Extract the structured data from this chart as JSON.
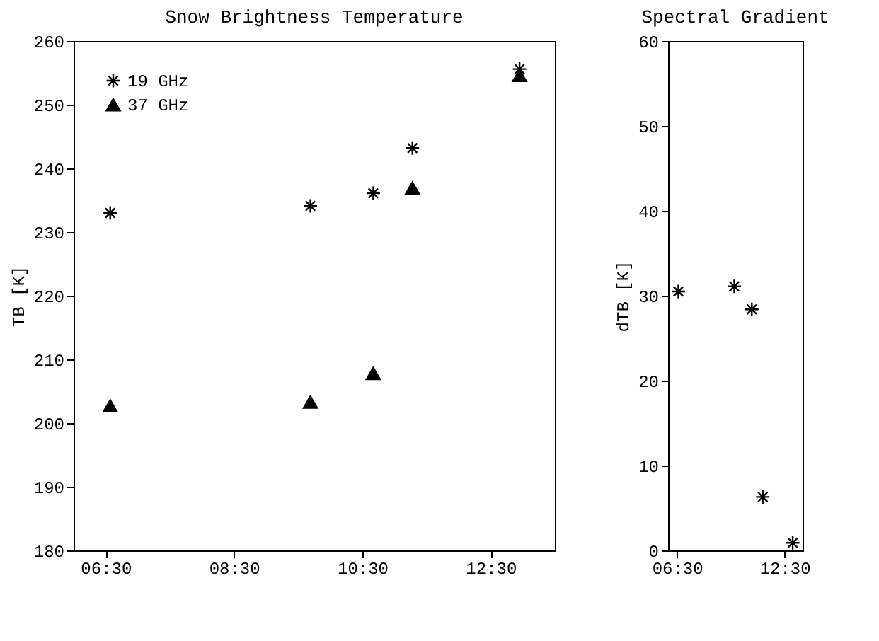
{
  "chart_data": [
    {
      "type": "scatter",
      "title": "Snow Brightness Temperature",
      "ylabel": "TB [K]",
      "x": [
        6.57,
        9.69,
        10.67,
        11.28,
        12.95
      ],
      "series": [
        {
          "name": "19 GHz",
          "color": "#000000",
          "marker": "cross",
          "values": [
            233.0,
            234.1,
            236.1,
            243.2,
            255.6
          ]
        },
        {
          "name": "37 GHz",
          "color": "#000000",
          "marker": "triangle",
          "values": [
            202.7,
            203.3,
            207.8,
            236.9,
            254.6
          ]
        }
      ],
      "xlim": [
        6.0,
        13.5
      ],
      "xticks": [
        {
          "value": 6.5,
          "label": "06:30"
        },
        {
          "value": 8.5,
          "label": "08:30"
        },
        {
          "value": 10.5,
          "label": "10:30"
        },
        {
          "value": 12.5,
          "label": "12:30"
        }
      ],
      "ylim": [
        180,
        260
      ],
      "yticks": [
        180,
        190,
        200,
        210,
        220,
        230,
        240,
        250,
        260
      ],
      "grid": false,
      "legend": "top left"
    },
    {
      "type": "scatter",
      "title": "Spectral Gradient",
      "ylabel": "dTB [K]",
      "x": [
        6.57,
        9.69,
        10.67,
        11.28,
        12.95
      ],
      "series": [
        {
          "color": "#000000",
          "marker": "cross",
          "values": [
            30.5,
            31.1,
            28.4,
            6.3,
            0.9
          ]
        }
      ],
      "xlim": [
        6.0,
        13.5
      ],
      "xticks": [
        {
          "value": 6.5,
          "label": "06:30"
        },
        {
          "value": 12.5,
          "label": "12:30"
        }
      ],
      "ylim": [
        0,
        60
      ],
      "yticks": [
        0,
        10,
        20,
        30,
        40,
        50,
        60
      ],
      "grid": false,
      "legend": false
    }
  ]
}
